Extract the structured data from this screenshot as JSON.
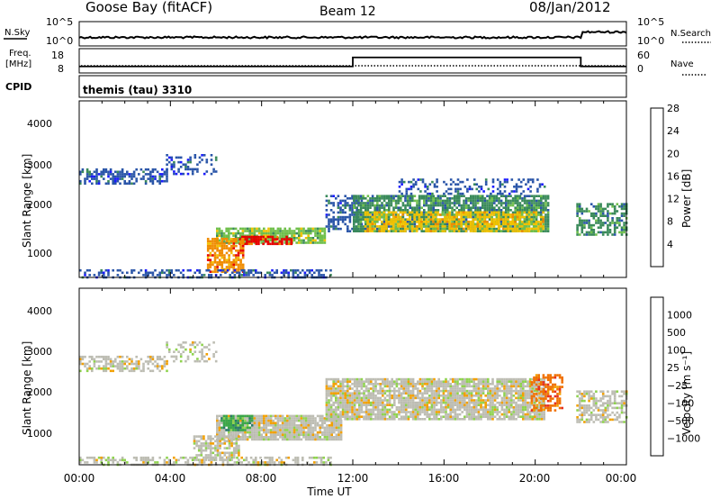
{
  "header": {
    "station": "Goose Bay (fitACF)",
    "beam": "Beam 12",
    "date": "08/Jan/2012"
  },
  "nsky_panel": {
    "left_label": "N.Sky",
    "left_ticks": [
      "10^5",
      "10^0"
    ],
    "right_label": "N.Search",
    "right_ticks": [
      "10^5",
      "10^0"
    ]
  },
  "freq_panel": {
    "left_label": "Freq.",
    "left_unit": "[MHz]",
    "left_ticks": [
      "18",
      "8"
    ],
    "right_label": "Nave",
    "right_ticks": [
      "60",
      "0"
    ]
  },
  "cpid_panel": {
    "label": "CPID",
    "text": "themis (tau) 3310"
  },
  "x_axis": {
    "label": "Time UT",
    "ticks": [
      "00:00",
      "04:00",
      "08:00",
      "12:00",
      "16:00",
      "20:00",
      "00:00"
    ]
  },
  "power_panel": {
    "ylabel": "Slant Range [km]",
    "yticks": [
      "1000",
      "2000",
      "3000",
      "4000"
    ],
    "colorbar_label": "Power [dB]",
    "colorbar_ticks": [
      "4",
      "8",
      "12",
      "16",
      "20",
      "24",
      "28"
    ],
    "colors": [
      "#1a1aff",
      "#2a55a8",
      "#3a8a5a",
      "#6fbf4b",
      "#f2c200",
      "#f08c00",
      "#e60000"
    ]
  },
  "velocity_panel": {
    "ylabel": "Slant Range [km]",
    "yticks": [
      "1000",
      "2000",
      "3000",
      "4000"
    ],
    "colorbar_label": "Velocity [m s⁻¹]",
    "colorbar_ticks": [
      "1000",
      "500",
      "100",
      "25",
      "−25",
      "−100",
      "−500",
      "−1000"
    ],
    "colors": [
      "#2330a8",
      "#2a7a6a",
      "#3aa64a",
      "#8fd34e",
      "#bdbdb3",
      "#f2a000",
      "#f07000",
      "#e53020",
      "#d90000"
    ]
  },
  "chart_data": {
    "type": "heatmap",
    "x": [
      0,
      4,
      8,
      12,
      16,
      20,
      24
    ],
    "x_unit": "hours UT",
    "ylim": [
      180,
      4500
    ],
    "frequency_mhz": {
      "segments": [
        {
          "from": 0,
          "to": 12,
          "value": 10.5
        },
        {
          "from": 12,
          "to": 22,
          "value": 14.5
        },
        {
          "from": 22,
          "to": 24,
          "value": 10.5
        }
      ]
    },
    "power_regions": [
      {
        "t0": 0,
        "t1": 3.8,
        "r0": 2450,
        "r1": 2850,
        "level": 1,
        "density": 0.55
      },
      {
        "t0": 3.8,
        "t1": 6.0,
        "r0": 2700,
        "r1": 3200,
        "level": 1,
        "density": 0.35
      },
      {
        "t0": 6.0,
        "t1": 10.8,
        "r0": 1000,
        "r1": 1400,
        "level": 3,
        "density": 0.85
      },
      {
        "t0": 7.0,
        "t1": 9.3,
        "r0": 1000,
        "r1": 1200,
        "level": 6,
        "density": 0.8
      },
      {
        "t0": 5.6,
        "t1": 7.2,
        "r0": 300,
        "r1": 1150,
        "level": 5,
        "density": 0.75
      },
      {
        "t0": 10.8,
        "t1": 12.4,
        "r0": 1300,
        "r1": 2200,
        "level": 1,
        "density": 0.5
      },
      {
        "t0": 12.0,
        "t1": 20.6,
        "r0": 1300,
        "r1": 2200,
        "level": 2,
        "density": 0.8
      },
      {
        "t0": 12.5,
        "t1": 20.4,
        "r0": 1300,
        "r1": 1800,
        "level": 4,
        "density": 0.7
      },
      {
        "t0": 14.0,
        "t1": 20.4,
        "r0": 2200,
        "r1": 2600,
        "level": 1,
        "density": 0.3
      },
      {
        "t0": 21.8,
        "t1": 24.0,
        "r0": 1200,
        "r1": 2000,
        "level": 2,
        "density": 0.6
      },
      {
        "t0": 0,
        "t1": 11.0,
        "r0": 200,
        "r1": 380,
        "level": 1,
        "density": 0.45
      }
    ],
    "velocity_regions": [
      {
        "t0": 0,
        "t1": 3.8,
        "r0": 2450,
        "r1": 2850,
        "level": 4,
        "density": 0.55
      },
      {
        "t0": 3.8,
        "t1": 6.0,
        "r0": 2700,
        "r1": 3200,
        "level": 4,
        "density": 0.35
      },
      {
        "t0": 6.0,
        "t1": 11.5,
        "r0": 800,
        "r1": 1400,
        "level": 4,
        "density": 0.9
      },
      {
        "t0": 6.2,
        "t1": 7.6,
        "r0": 1000,
        "r1": 1400,
        "level": 2,
        "density": 0.7
      },
      {
        "t0": 5.0,
        "t1": 7.0,
        "r0": 300,
        "r1": 900,
        "level": 4,
        "density": 0.7
      },
      {
        "t0": 10.8,
        "t1": 20.4,
        "r0": 1300,
        "r1": 2300,
        "level": 4,
        "density": 0.85
      },
      {
        "t0": 19.8,
        "t1": 21.2,
        "r0": 1500,
        "r1": 2400,
        "level": 6,
        "density": 0.55
      },
      {
        "t0": 21.8,
        "t1": 24.0,
        "r0": 1200,
        "r1": 2000,
        "level": 4,
        "density": 0.6
      },
      {
        "t0": 0,
        "t1": 11.0,
        "r0": 200,
        "r1": 380,
        "level": 4,
        "density": 0.45
      }
    ]
  }
}
